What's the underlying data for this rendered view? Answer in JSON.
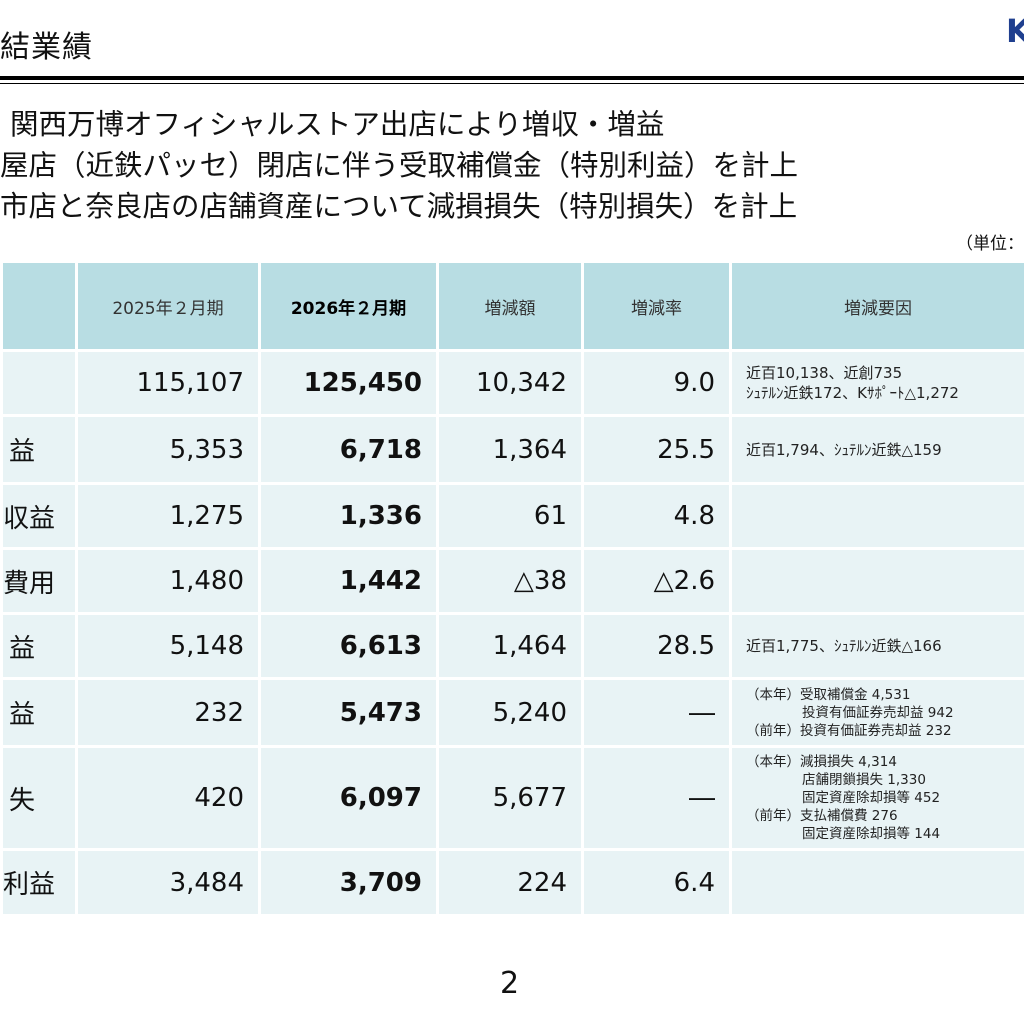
{
  "header": {
    "title": "結業績",
    "logo_text": "K"
  },
  "summary": [
    "関西万博オフィシャルストア出店により増収・増益",
    "屋店（近鉄パッセ）閉店に伴う受取補償金（特別利益）を計上",
    "市店と奈良店の店舗資産について減損損失（特別損失）を計上"
  ],
  "unit_label": "（単位：",
  "table": {
    "headers": {
      "prev": "2025年２月期",
      "curr": "2026年２月期",
      "diff": "増減額",
      "rate": "増減率",
      "reason": "増減要因"
    },
    "rows": [
      {
        "item": "",
        "prev": "115,107",
        "curr": "125,450",
        "diff": "10,342",
        "rate": "9.0",
        "reasons": [
          "近百10,138、近創735",
          "ｼｭﾃﾙﾝ近鉄172、Kｻﾎﾟｰﾄ△1,272"
        ]
      },
      {
        "item": "益",
        "prev": "5,353",
        "curr": "6,718",
        "diff": "1,364",
        "rate": "25.5",
        "reasons": [
          "近百1,794、ｼｭﾃﾙﾝ近鉄△159"
        ]
      },
      {
        "item": "収益",
        "prev": "1,275",
        "curr": "1,336",
        "diff": "61",
        "rate": "4.8",
        "reasons": []
      },
      {
        "item": "費用",
        "prev": "1,480",
        "curr": "1,442",
        "diff": "△38",
        "rate": "△2.6",
        "reasons": []
      },
      {
        "item": "益",
        "prev": "5,148",
        "curr": "6,613",
        "diff": "1,464",
        "rate": "28.5",
        "reasons": [
          "近百1,775、ｼｭﾃﾙﾝ近鉄△166"
        ]
      },
      {
        "item": "益",
        "prev": "232",
        "curr": "5,473",
        "diff": "5,240",
        "rate": "―",
        "reasons": [
          "（本年）受取補償金 4,531",
          "投資有価証券売却益 942",
          "（前年）投資有価証券売却益 232"
        ]
      },
      {
        "item": "失",
        "prev": "420",
        "curr": "6,097",
        "diff": "5,677",
        "rate": "―",
        "reasons": [
          "（本年）減損損失 4,314",
          "店舗閉鎖損失 1,330",
          "固定資産除却損等 452",
          "（前年）支払補償費 276",
          "固定資産除却損等 144"
        ]
      },
      {
        "item": "利益",
        "prev": "3,484",
        "curr": "3,709",
        "diff": "224",
        "rate": "6.4",
        "reasons": []
      }
    ]
  },
  "page_number": "2"
}
